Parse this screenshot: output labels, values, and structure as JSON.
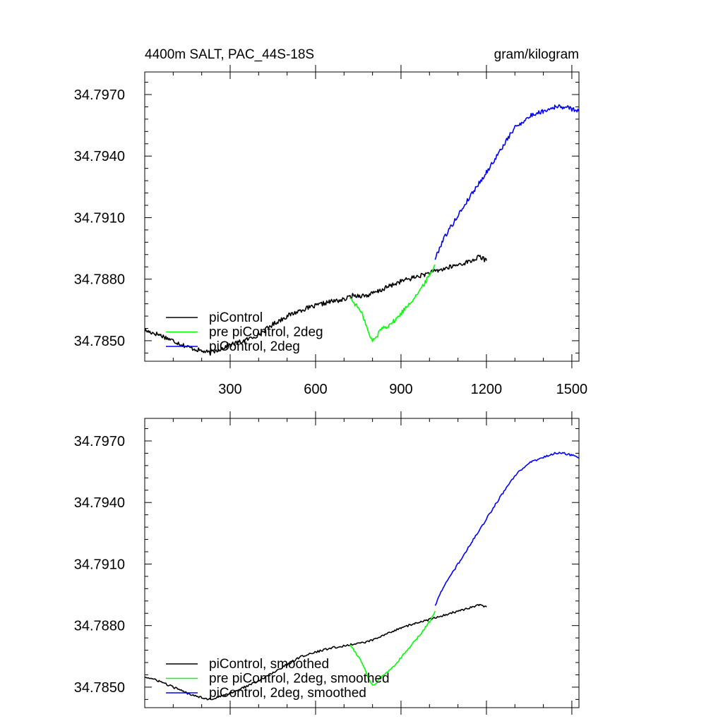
{
  "chart_data": [
    {
      "type": "line",
      "title": "4400m SALT, PAC_44S-18S",
      "units": "gram/kilogram",
      "xlim": [
        0,
        1525
      ],
      "ylim": [
        34.784,
        34.7981
      ],
      "x_ticks": [
        300,
        600,
        900,
        1200,
        1500
      ],
      "y_ticks": [
        34.785,
        34.788,
        34.791,
        34.794,
        34.797
      ],
      "y_tick_labels": [
        "34.7850",
        "34.7880",
        "34.7910",
        "34.7940",
        "34.7970"
      ],
      "x_tick_labels": [
        "300",
        "600",
        "900",
        "1200",
        "1500"
      ],
      "legend_position": "bottom-left",
      "series": [
        {
          "name": "piControl",
          "color": "#000000",
          "x": [
            0,
            50,
            100,
            150,
            200,
            230,
            300,
            350,
            400,
            450,
            500,
            550,
            600,
            650,
            700,
            730,
            780,
            820,
            850,
            900,
            950,
            1000,
            1050,
            1100,
            1150,
            1175,
            1200
          ],
          "y": [
            34.7855,
            34.7853,
            34.785,
            34.7847,
            34.7845,
            34.7844,
            34.7848,
            34.785,
            34.7853,
            34.7858,
            34.7862,
            34.7865,
            34.7867,
            34.7869,
            34.787,
            34.7872,
            34.7872,
            34.7874,
            34.7876,
            34.7879,
            34.7881,
            34.7883,
            34.7885,
            34.7887,
            34.7889,
            34.7891,
            34.7889
          ]
        },
        {
          "name": "pre piControl, 2deg",
          "color": "#00ff00",
          "x": [
            720,
            750,
            770,
            790,
            800,
            815,
            830,
            850,
            880,
            910,
            940,
            970,
            1000,
            1020
          ],
          "y": [
            34.7871,
            34.7866,
            34.7861,
            34.7852,
            34.785,
            34.7852,
            34.7856,
            34.7857,
            34.786,
            34.7865,
            34.787,
            34.7875,
            34.7882,
            34.7887
          ]
        },
        {
          "name": "piControl, 2deg",
          "color": "#0000ff",
          "x": [
            1020,
            1050,
            1100,
            1150,
            1200,
            1250,
            1300,
            1330,
            1360,
            1400,
            1440,
            1470,
            1500,
            1525
          ],
          "y": [
            34.789,
            34.79,
            34.7911,
            34.7922,
            34.7932,
            34.7943,
            34.7954,
            34.7957,
            34.796,
            34.7962,
            34.7964,
            34.7964,
            34.7963,
            34.7962
          ]
        }
      ]
    },
    {
      "type": "line",
      "title": "",
      "units": "",
      "xlim": [
        0,
        1525
      ],
      "ylim": [
        34.784,
        34.7981
      ],
      "x_ticks": [
        300,
        600,
        900,
        1200,
        1500
      ],
      "y_ticks": [
        34.785,
        34.788,
        34.791,
        34.794,
        34.797
      ],
      "y_tick_labels": [
        "34.7850",
        "34.7880",
        "34.7910",
        "34.7940",
        "34.7970"
      ],
      "x_tick_labels": [],
      "legend_position": "bottom-left",
      "series": [
        {
          "name": "piControl, smoothed",
          "color": "#000000",
          "x": [
            0,
            50,
            100,
            150,
            200,
            230,
            300,
            350,
            400,
            450,
            500,
            550,
            600,
            650,
            700,
            730,
            780,
            820,
            850,
            900,
            950,
            1000,
            1050,
            1100,
            1150,
            1175,
            1200
          ],
          "y": [
            34.7855,
            34.7853,
            34.785,
            34.7847,
            34.7845,
            34.7844,
            34.7847,
            34.785,
            34.7853,
            34.7857,
            34.7861,
            34.7865,
            34.7867,
            34.7869,
            34.787,
            34.7871,
            34.7872,
            34.7874,
            34.7876,
            34.7879,
            34.7881,
            34.7883,
            34.7885,
            34.7887,
            34.7889,
            34.789,
            34.7889
          ]
        },
        {
          "name": "pre piControl, 2deg, smoothed",
          "color": "#00ff00",
          "x": [
            720,
            750,
            770,
            790,
            800,
            815,
            830,
            850,
            880,
            910,
            940,
            970,
            1000,
            1020
          ],
          "y": [
            34.7871,
            34.7865,
            34.786,
            34.7853,
            34.7851,
            34.7852,
            34.7855,
            34.7857,
            34.7861,
            34.7866,
            34.7871,
            34.7876,
            34.7882,
            34.7887
          ]
        },
        {
          "name": "piControl, 2deg, smoothed",
          "color": "#0000ff",
          "x": [
            1020,
            1050,
            1100,
            1150,
            1200,
            1250,
            1300,
            1330,
            1360,
            1400,
            1440,
            1470,
            1500,
            1525
          ],
          "y": [
            34.789,
            34.7899,
            34.791,
            34.7921,
            34.7932,
            34.7943,
            34.7953,
            34.7957,
            34.796,
            34.7962,
            34.7964,
            34.7964,
            34.7963,
            34.7962
          ]
        }
      ]
    }
  ]
}
